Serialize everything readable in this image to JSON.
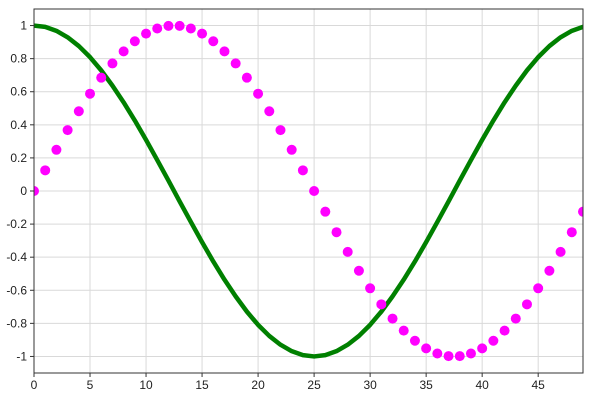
{
  "chart_data": {
    "type": "line",
    "title": "",
    "xlabel": "",
    "ylabel": "",
    "xlim": [
      0,
      49
    ],
    "ylim": [
      -1.1,
      1.1
    ],
    "grid": true,
    "legend": "none",
    "x_ticks": [
      0,
      5,
      10,
      15,
      20,
      25,
      30,
      35,
      40,
      45
    ],
    "x_tick_labels": [
      "0",
      "5",
      "10",
      "15",
      "20",
      "25",
      "30",
      "35",
      "40",
      "45"
    ],
    "y_ticks": [
      1,
      0.8,
      0.6,
      0.4,
      0.2,
      0,
      -0.2,
      -0.4,
      -0.6,
      -0.8,
      -1
    ],
    "y_tick_labels": [
      "1",
      "0.8",
      "0.6",
      "0.4",
      "0.2",
      "0",
      "-0.2",
      "-0.4",
      "-0.6",
      "-0.8",
      "-1"
    ],
    "x": [
      0,
      1,
      2,
      3,
      4,
      5,
      6,
      7,
      8,
      9,
      10,
      11,
      12,
      13,
      14,
      15,
      16,
      17,
      18,
      19,
      20,
      21,
      22,
      23,
      24,
      25,
      26,
      27,
      28,
      29,
      30,
      31,
      32,
      33,
      34,
      35,
      36,
      37,
      38,
      39,
      40,
      41,
      42,
      43,
      44,
      45,
      46,
      47,
      48,
      49
    ],
    "series": [
      {
        "style": "line",
        "color": "#008000",
        "values": [
          1.0,
          0.992,
          0.968,
          0.929,
          0.876,
          0.809,
          0.729,
          0.637,
          0.536,
          0.426,
          0.309,
          0.187,
          0.063,
          -0.063,
          -0.187,
          -0.309,
          -0.426,
          -0.536,
          -0.637,
          -0.729,
          -0.809,
          -0.876,
          -0.929,
          -0.968,
          -0.992,
          -1.0,
          -0.992,
          -0.968,
          -0.929,
          -0.876,
          -0.809,
          -0.729,
          -0.637,
          -0.536,
          -0.426,
          -0.309,
          -0.187,
          -0.063,
          0.063,
          0.187,
          0.309,
          0.426,
          0.536,
          0.637,
          0.729,
          0.809,
          0.876,
          0.929,
          0.968,
          0.992
        ]
      },
      {
        "style": "scatter",
        "color": "#ff00ff",
        "values": [
          0.0,
          0.125,
          0.249,
          0.368,
          0.482,
          0.588,
          0.685,
          0.771,
          0.844,
          0.905,
          0.951,
          0.982,
          0.998,
          0.998,
          0.982,
          0.951,
          0.905,
          0.844,
          0.771,
          0.685,
          0.588,
          0.482,
          0.368,
          0.249,
          0.125,
          0.0,
          -0.125,
          -0.249,
          -0.368,
          -0.482,
          -0.588,
          -0.685,
          -0.771,
          -0.844,
          -0.905,
          -0.951,
          -0.982,
          -0.998,
          -0.998,
          -0.982,
          -0.951,
          -0.905,
          -0.844,
          -0.771,
          -0.685,
          -0.588,
          -0.482,
          -0.368,
          -0.249,
          -0.125
        ]
      }
    ]
  }
}
